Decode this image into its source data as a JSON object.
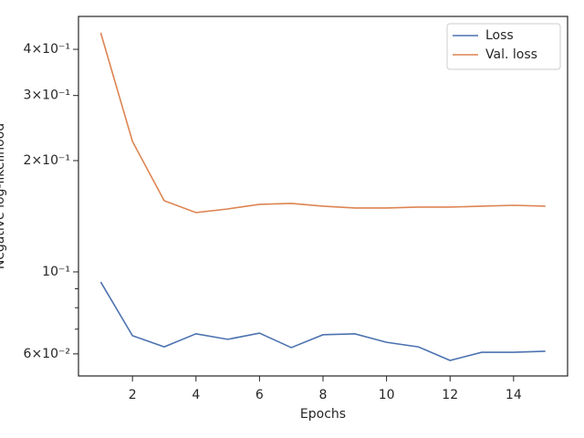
{
  "chart_data": {
    "type": "line",
    "xlabel": "Epochs",
    "ylabel": "Negative log-likelihood",
    "x": [
      1,
      2,
      3,
      4,
      5,
      6,
      7,
      8,
      9,
      10,
      11,
      12,
      13,
      14,
      15
    ],
    "series": [
      {
        "name": "Loss",
        "color": "#4c72b0",
        "values": [
          0.0939,
          0.0672,
          0.0627,
          0.068,
          0.0657,
          0.0683,
          0.0624,
          0.0676,
          0.068,
          0.0645,
          0.0627,
          0.0576,
          0.0606,
          0.0606,
          0.061
        ]
      },
      {
        "name": "Val. loss",
        "color": "#dd8452",
        "values": [
          0.4436,
          0.2254,
          0.1558,
          0.1447,
          0.148,
          0.1523,
          0.1532,
          0.1506,
          0.1489,
          0.1489,
          0.1497,
          0.1497,
          0.1506,
          0.1514,
          0.1506
        ]
      }
    ],
    "xlim": [
      0.3,
      15.7
    ],
    "xticks": [
      2,
      4,
      6,
      8,
      10,
      12,
      14
    ],
    "ylim": [
      0.0523,
      0.491
    ],
    "ylog": true,
    "yticks": [
      {
        "value": 0.06,
        "label": "6×10⁻²"
      },
      {
        "value": 0.1,
        "label": "10⁻¹"
      },
      {
        "value": 0.2,
        "label": "2×10⁻¹"
      },
      {
        "value": 0.3,
        "label": "3×10⁻¹"
      },
      {
        "value": 0.4,
        "label": "4×10⁻¹"
      }
    ],
    "yticks_minor": [
      0.07,
      0.08,
      0.09
    ],
    "legend": "upper right"
  }
}
